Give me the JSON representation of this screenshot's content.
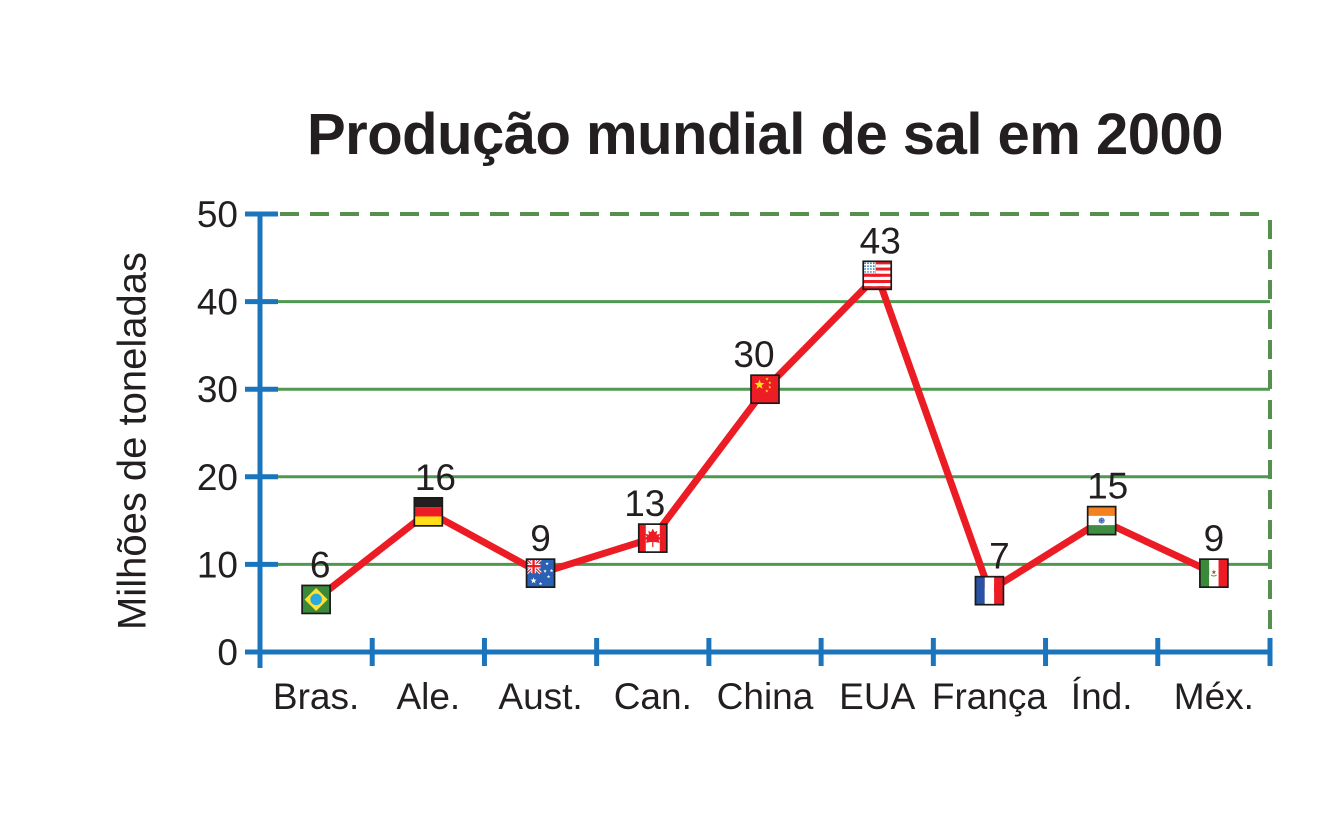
{
  "chart_data": {
    "type": "line",
    "title": "Produção mundial de sal em 2000",
    "ylabel": "Milhões de toneladas",
    "xlabel": "",
    "categories": [
      "Bras.",
      "Ale.",
      "Aust.",
      "Can.",
      "China",
      "EUA",
      "França",
      "Índ.",
      "Méx."
    ],
    "values": [
      6,
      16,
      9,
      13,
      30,
      43,
      7,
      15,
      9
    ],
    "data_labels": [
      "6",
      "16",
      "9",
      "13",
      "30",
      "43",
      "7",
      "15",
      "9"
    ],
    "point_flag_icons": [
      "brazil",
      "germany",
      "australia",
      "canada",
      "china",
      "usa",
      "france",
      "india",
      "mexico"
    ],
    "yticks": [
      0,
      10,
      20,
      30,
      40,
      50
    ],
    "ylim": [
      0,
      50
    ],
    "grid": {
      "horizontal": "solid green lines at 10,20,30,40",
      "frame": "dashed green line at top (50) and right edge"
    },
    "legend": "none",
    "colors": {
      "line": "#ec1c24",
      "axis": "#1b75bc",
      "grid": "#4f9850",
      "dashed_border": "#55904f",
      "text": "#231f20",
      "flag_border": "#1a1a1a"
    }
  }
}
